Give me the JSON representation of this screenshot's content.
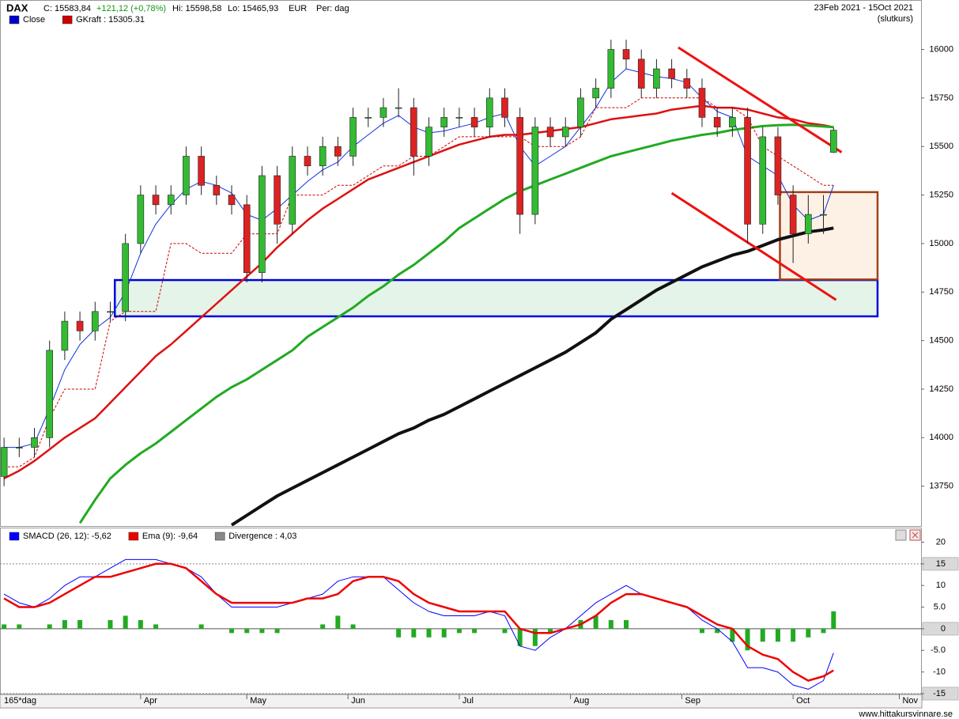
{
  "chart_data": [
    {
      "type": "candlestick",
      "title": "DAX",
      "close_label": "C: 15583,84",
      "change_label": "+121,12 (+0,78%)",
      "high_label": "Hi: 15598,58",
      "low_label": "Lo: 15465,93",
      "currency": "EUR",
      "period": "Per: dag",
      "date_range": "23Feb 2021 - 15Oct 2021",
      "price_note": "(slutkurs)",
      "candle_name": "Close",
      "candle_legend_color": "#0000cc",
      "up_color": "#33bb33",
      "down_color": "#dd2222",
      "x": [
        0,
        3,
        6,
        9,
        12,
        15,
        18,
        21,
        24,
        27,
        30,
        33,
        36,
        39,
        42,
        45,
        48,
        51,
        54,
        57,
        60,
        63,
        66,
        69,
        72,
        75,
        78,
        81,
        84,
        87,
        90,
        93,
        96,
        99,
        102,
        105,
        108,
        111,
        114,
        117,
        120,
        123,
        126,
        129,
        132,
        135,
        138,
        141,
        144,
        147,
        150,
        153,
        156,
        159,
        162,
        164
      ],
      "open": [
        13800,
        13950,
        13950,
        14000,
        14450,
        14600,
        14550,
        14650,
        14650,
        15000,
        15250,
        15200,
        15250,
        15450,
        15300,
        15250,
        15200,
        14850,
        15350,
        15100,
        15450,
        15400,
        15500,
        15450,
        15650,
        15650,
        15700,
        15700,
        15450,
        15600,
        15650,
        15650,
        15600,
        15750,
        15650,
        15150,
        15600,
        15550,
        15600,
        15750,
        15800,
        16000,
        15950,
        15800,
        15900,
        15850,
        15800,
        15650,
        15600,
        15650,
        15100,
        15550,
        15250,
        15050,
        15150,
        15470
      ],
      "high": [
        14000,
        14000,
        14050,
        14500,
        14650,
        14650,
        14700,
        14700,
        15050,
        15300,
        15300,
        15300,
        15500,
        15500,
        15350,
        15300,
        15250,
        15400,
        15400,
        15500,
        15500,
        15550,
        15550,
        15700,
        15700,
        15750,
        15800,
        15750,
        15650,
        15700,
        15700,
        15700,
        15800,
        15800,
        15700,
        15650,
        15650,
        15650,
        15800,
        15850,
        16050,
        16050,
        16000,
        15950,
        15950,
        15900,
        15850,
        15700,
        15700,
        15700,
        15600,
        15600,
        15300,
        15250,
        15250,
        15599
      ],
      "low": [
        13750,
        13900,
        13900,
        13950,
        14400,
        14500,
        14500,
        14600,
        14600,
        14950,
        15150,
        15150,
        15200,
        15250,
        15200,
        15150,
        14800,
        14800,
        15000,
        15050,
        15350,
        15350,
        15400,
        15400,
        15600,
        15600,
        15650,
        15350,
        15400,
        15550,
        15600,
        15550,
        15550,
        15600,
        15050,
        15100,
        15500,
        15500,
        15550,
        15700,
        15750,
        15900,
        15750,
        15750,
        15800,
        15750,
        15600,
        15550,
        15550,
        15000,
        15050,
        15200,
        14900,
        15000,
        15050,
        15466
      ],
      "close": [
        13950,
        13950,
        14000,
        14450,
        14600,
        14550,
        14650,
        14650,
        15000,
        15250,
        15200,
        15250,
        15450,
        15300,
        15250,
        15200,
        14850,
        15350,
        15100,
        15450,
        15400,
        15500,
        15450,
        15650,
        15650,
        15700,
        15700,
        15450,
        15600,
        15650,
        15650,
        15600,
        15750,
        15650,
        15150,
        15600,
        15550,
        15600,
        15750,
        15800,
        16000,
        15950,
        15800,
        15900,
        15850,
        15800,
        15650,
        15600,
        15650,
        15100,
        15550,
        15250,
        15050,
        15150,
        15150,
        15584
      ],
      "series": [
        {
          "color": "#1133dd",
          "width": 1,
          "values": [
            13950,
            13950,
            13970,
            14150,
            14350,
            14480,
            14560,
            14620,
            14750,
            14950,
            15100,
            15200,
            15280,
            15320,
            15300,
            15260,
            15150,
            15120,
            15180,
            15250,
            15320,
            15380,
            15420,
            15500,
            15560,
            15620,
            15660,
            15600,
            15570,
            15580,
            15600,
            15620,
            15650,
            15670,
            15500,
            15400,
            15450,
            15500,
            15600,
            15700,
            15830,
            15900,
            15880,
            15860,
            15850,
            15830,
            15750,
            15680,
            15650,
            15450,
            15400,
            15350,
            15200,
            15120,
            15150,
            15300
          ]
        },
        {
          "color": "#dd1111",
          "width": 2.5,
          "values": [
            13790,
            13830,
            13880,
            13940,
            14000,
            14050,
            14100,
            14180,
            14260,
            14340,
            14420,
            14480,
            14550,
            14620,
            14690,
            14760,
            14830,
            14900,
            14980,
            15050,
            15120,
            15180,
            15230,
            15280,
            15330,
            15360,
            15390,
            15420,
            15450,
            15480,
            15510,
            15530,
            15550,
            15560,
            15560,
            15570,
            15580,
            15590,
            15600,
            15620,
            15640,
            15650,
            15660,
            15670,
            15690,
            15700,
            15710,
            15700,
            15700,
            15690,
            15670,
            15650,
            15640,
            15620,
            15610,
            15600
          ]
        },
        {
          "color": "#22aa22",
          "width": 3,
          "values": [
            null,
            null,
            null,
            null,
            null,
            13560,
            13680,
            13790,
            13860,
            13920,
            13970,
            14030,
            14090,
            14150,
            14210,
            14260,
            14300,
            14350,
            14400,
            14450,
            14520,
            14570,
            14620,
            14670,
            14730,
            14780,
            14840,
            14890,
            14950,
            15010,
            15080,
            15130,
            15180,
            15230,
            15270,
            15300,
            15330,
            15360,
            15390,
            15420,
            15450,
            15470,
            15490,
            15510,
            15530,
            15545,
            15560,
            15570,
            15585,
            15595,
            15605,
            15610,
            15612,
            15608,
            15603,
            15600
          ]
        },
        {
          "color": "#111111",
          "width": 4,
          "values": [
            null,
            null,
            null,
            null,
            null,
            null,
            null,
            null,
            null,
            null,
            null,
            null,
            null,
            null,
            null,
            13550,
            13600,
            13650,
            13700,
            13740,
            13780,
            13820,
            13860,
            13900,
            13940,
            13980,
            14020,
            14050,
            14090,
            14120,
            14160,
            14200,
            14240,
            14280,
            14320,
            14360,
            14400,
            14440,
            14490,
            14540,
            14610,
            14660,
            14710,
            14760,
            14800,
            14840,
            14880,
            14910,
            14940,
            14960,
            14990,
            15020,
            15040,
            15060,
            15070,
            15080
          ]
        },
        {
          "name": "GKraft : 15305.31",
          "color": "#cc0000",
          "width": 1,
          "dashed": true,
          "values": [
            13850,
            13850,
            13900,
            14100,
            14250,
            14250,
            14250,
            14600,
            14650,
            14650,
            14650,
            15000,
            15000,
            14950,
            14950,
            14950,
            15050,
            15050,
            15050,
            15250,
            15250,
            15250,
            15300,
            15300,
            15350,
            15400,
            15400,
            15450,
            15450,
            15500,
            15550,
            15550,
            15550,
            15550,
            15550,
            15500,
            15500,
            15500,
            15550,
            15700,
            15700,
            15700,
            15750,
            15750,
            15750,
            15750,
            15750,
            15700,
            15700,
            15650,
            15500,
            15450,
            15400,
            15350,
            15300,
            15300
          ]
        }
      ],
      "trend_lines": [
        {
          "color": "#ee1111",
          "x": [
            133.3,
            165.6
          ],
          "y": [
            16010,
            15470
          ]
        },
        {
          "color": "#ee1111",
          "x": [
            132,
            164.5
          ],
          "y": [
            15260,
            14710
          ]
        }
      ],
      "boxes": [
        {
          "stroke": "#0000dd",
          "fill": "#e4f4e8",
          "x": [
            21.9,
            172.7
          ],
          "y": [
            14625,
            14812
          ]
        },
        {
          "stroke": "#a0401a",
          "fill": "#fdf1e6",
          "x": [
            153.4,
            172.7
          ],
          "y": [
            14815,
            15265
          ]
        }
      ],
      "xlim": [
        -0.8,
        181.3
      ],
      "ylim": [
        13545,
        16165
      ],
      "yticks": [
        13750,
        14000,
        14250,
        14500,
        14750,
        15000,
        15250,
        15500,
        15750,
        16000
      ],
      "xticks": [
        {
          "value": 27,
          "label": "Apr"
        },
        {
          "value": 48,
          "label": "May"
        },
        {
          "value": 68,
          "label": "Jun"
        },
        {
          "value": 90,
          "label": "Jul"
        },
        {
          "value": 112,
          "label": "Aug"
        },
        {
          "value": 134,
          "label": "Sep"
        },
        {
          "value": 156,
          "label": "Oct"
        },
        {
          "value": 177,
          "label": "Nov"
        }
      ],
      "x_label": "165*dag",
      "grid": false,
      "footer": "www.hittakursvinnare.se"
    },
    {
      "type": "macd",
      "series": [
        {
          "name": "SMACD (26, 12): -5,62",
          "color": "#0000ff",
          "kind": "line",
          "width": 1,
          "values": [
            8,
            6,
            5,
            7,
            10,
            12,
            12,
            14,
            16,
            16,
            16,
            15,
            14,
            12,
            8,
            5,
            5,
            5,
            5,
            6,
            7,
            8,
            11,
            12,
            12,
            12,
            9,
            6,
            4,
            3,
            3,
            3,
            4,
            3,
            -4,
            -5,
            -2,
            0,
            3,
            6,
            8,
            10,
            8,
            7,
            6,
            5,
            2,
            0,
            -3,
            -9,
            -9,
            -10,
            -13,
            -14,
            -12,
            -5.62
          ]
        },
        {
          "name": "Ema (9): -9,64",
          "color": "#ee0000",
          "kind": "line",
          "width": 2.5,
          "values": [
            7,
            5,
            5,
            6,
            8,
            10,
            12,
            12,
            13,
            14,
            15,
            15,
            14,
            11,
            8,
            6,
            6,
            6,
            6,
            6,
            7,
            7,
            8,
            11,
            12,
            12,
            11,
            8,
            6,
            5,
            4,
            4,
            4,
            4,
            0,
            -1,
            -1,
            0,
            1,
            3,
            6,
            8,
            8,
            7,
            6,
            5,
            3,
            1,
            0,
            -4,
            -6,
            -7,
            -10,
            -12,
            -11,
            -9.64
          ]
        },
        {
          "name": "Divergence : 4,03",
          "color": "#888888",
          "bar_color": "#22aa22",
          "kind": "bar",
          "values": [
            1,
            1,
            0,
            1,
            2,
            2,
            0,
            2,
            3,
            2,
            1,
            0,
            0,
            1,
            0,
            -1,
            -1,
            -1,
            -1,
            0,
            0,
            1,
            3,
            1,
            0,
            0,
            -2,
            -2,
            -2,
            -2,
            -1,
            -1,
            0,
            -1,
            -4,
            -4,
            -1,
            0,
            2,
            3,
            2,
            2,
            0,
            0,
            0,
            0,
            -1,
            -1,
            -3,
            -5,
            -3,
            -3,
            -3,
            -2,
            -1,
            4.03
          ]
        }
      ],
      "ylim": [
        -15.2,
        23.2
      ],
      "yticks": [
        20,
        15,
        10,
        {
          "value": 5,
          "label": "5.0"
        },
        0,
        {
          "value": -5,
          "label": "-5.0"
        },
        -10,
        -15
      ]
    }
  ]
}
